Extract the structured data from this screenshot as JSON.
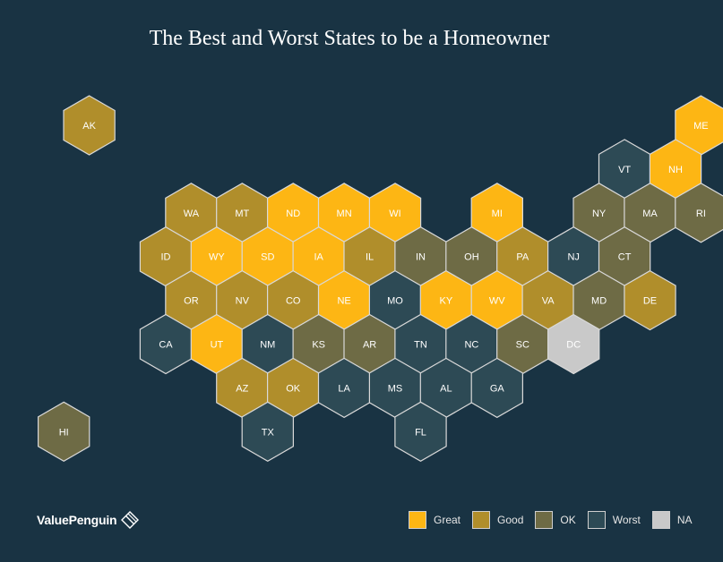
{
  "title": "The Best and Worst States to be a Homeowner",
  "brand": {
    "name": "ValuePenguin",
    "icon": "valuepenguin-logo-icon"
  },
  "colors": {
    "Great": "#fdb614",
    "Good": "#b08e2b",
    "OK": "#6e6b45",
    "Worst": "#2d4a55",
    "NA": "#c9c9c9"
  },
  "legend": [
    {
      "label": "Great",
      "category": "Great"
    },
    {
      "label": "Good",
      "category": "Good"
    },
    {
      "label": "OK",
      "category": "OK"
    },
    {
      "label": "Worst",
      "category": "Worst"
    },
    {
      "label": "NA",
      "category": "NA"
    }
  ],
  "states": [
    {
      "abbr": "AK",
      "category": "Good"
    },
    {
      "abbr": "ME",
      "category": "Great"
    },
    {
      "abbr": "VT",
      "category": "Worst"
    },
    {
      "abbr": "NH",
      "category": "Great"
    },
    {
      "abbr": "WA",
      "category": "Good"
    },
    {
      "abbr": "MT",
      "category": "Good"
    },
    {
      "abbr": "ND",
      "category": "Great"
    },
    {
      "abbr": "MN",
      "category": "Great"
    },
    {
      "abbr": "WI",
      "category": "Great"
    },
    {
      "abbr": "MI",
      "category": "Great"
    },
    {
      "abbr": "NY",
      "category": "OK"
    },
    {
      "abbr": "MA",
      "category": "OK"
    },
    {
      "abbr": "RI",
      "category": "OK"
    },
    {
      "abbr": "ID",
      "category": "Good"
    },
    {
      "abbr": "WY",
      "category": "Great"
    },
    {
      "abbr": "SD",
      "category": "Great"
    },
    {
      "abbr": "IA",
      "category": "Great"
    },
    {
      "abbr": "IL",
      "category": "Good"
    },
    {
      "abbr": "IN",
      "category": "OK"
    },
    {
      "abbr": "OH",
      "category": "OK"
    },
    {
      "abbr": "PA",
      "category": "Good"
    },
    {
      "abbr": "NJ",
      "category": "Worst"
    },
    {
      "abbr": "CT",
      "category": "OK"
    },
    {
      "abbr": "OR",
      "category": "Good"
    },
    {
      "abbr": "NV",
      "category": "Good"
    },
    {
      "abbr": "CO",
      "category": "Good"
    },
    {
      "abbr": "NE",
      "category": "Great"
    },
    {
      "abbr": "MO",
      "category": "Worst"
    },
    {
      "abbr": "KY",
      "category": "Great"
    },
    {
      "abbr": "WV",
      "category": "Great"
    },
    {
      "abbr": "VA",
      "category": "Good"
    },
    {
      "abbr": "MD",
      "category": "OK"
    },
    {
      "abbr": "DE",
      "category": "Good"
    },
    {
      "abbr": "CA",
      "category": "Worst"
    },
    {
      "abbr": "UT",
      "category": "Great"
    },
    {
      "abbr": "NM",
      "category": "Worst"
    },
    {
      "abbr": "KS",
      "category": "OK"
    },
    {
      "abbr": "AR",
      "category": "OK"
    },
    {
      "abbr": "TN",
      "category": "Worst"
    },
    {
      "abbr": "NC",
      "category": "Worst"
    },
    {
      "abbr": "SC",
      "category": "OK"
    },
    {
      "abbr": "DC",
      "category": "NA"
    },
    {
      "abbr": "AZ",
      "category": "Good"
    },
    {
      "abbr": "OK",
      "category": "Good"
    },
    {
      "abbr": "LA",
      "category": "Worst"
    },
    {
      "abbr": "MS",
      "category": "Worst"
    },
    {
      "abbr": "AL",
      "category": "Worst"
    },
    {
      "abbr": "GA",
      "category": "Worst"
    },
    {
      "abbr": "HI",
      "category": "OK"
    },
    {
      "abbr": "TX",
      "category": "Worst"
    },
    {
      "abbr": "FL",
      "category": "Worst"
    }
  ]
}
